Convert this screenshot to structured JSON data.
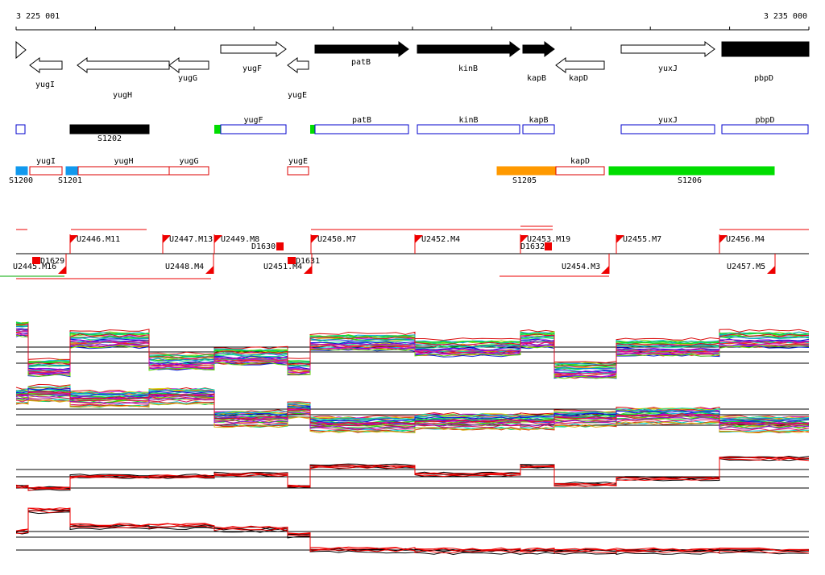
{
  "ruler": {
    "start": "3 225 001",
    "end": "3 235 000"
  },
  "genes": [
    {
      "label": "yugI"
    },
    {
      "label": "yugH"
    },
    {
      "label": "yugG"
    },
    {
      "label": "yugF"
    },
    {
      "label": "yugE"
    },
    {
      "label": "patB"
    },
    {
      "label": "kinB"
    },
    {
      "label": "kapB"
    },
    {
      "label": "kapD"
    },
    {
      "label": "yuxJ"
    },
    {
      "label": "pbpD"
    }
  ],
  "features_forward": [
    "yugF",
    "patB",
    "kinB",
    "kapB",
    "yuxJ",
    "pbpD",
    "S1202"
  ],
  "features_reverse": [
    "S1200",
    "yugI",
    "S1201",
    "yugH",
    "yugG",
    "yugE",
    "S1205",
    "kapD",
    "S1206"
  ],
  "sites_upper": [
    "U2446.M11",
    "U2447.M13",
    "U2449.M8",
    "D1630",
    "U2450.M7",
    "U2452.M4",
    "U2453.M19",
    "D1632",
    "U2455.M7",
    "U2456.M4"
  ],
  "sites_lower": [
    "U2445.M16",
    "D1629",
    "U2448.M4",
    "U2451.M4",
    "D1631",
    "U2454.M3",
    "U2457.M5"
  ]
}
